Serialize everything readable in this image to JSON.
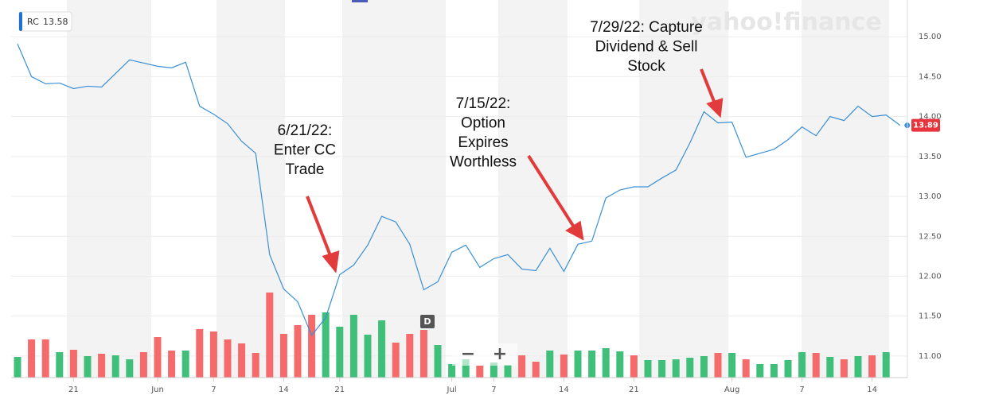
{
  "chart_data": {
    "type": "line",
    "legend_symbol": "RC",
    "legend_value": 13.58,
    "watermark": "yahoo!finance",
    "marker_letter": "D",
    "zoom_out": "−",
    "zoom_in": "+",
    "categories": [
      null,
      null,
      null,
      null,
      "21",
      null,
      null,
      null,
      null,
      null,
      "Jun",
      null,
      null,
      null,
      "7",
      null,
      null,
      null,
      null,
      "14",
      null,
      null,
      null,
      "21",
      null,
      null,
      null,
      null,
      null,
      null,
      null,
      "Jul",
      null,
      null,
      "7",
      null,
      null,
      null,
      null,
      "14",
      null,
      null,
      null,
      null,
      "21",
      null,
      null,
      null,
      null,
      null,
      null,
      "Aug",
      null,
      null,
      null,
      null,
      "7",
      null,
      null,
      null,
      null,
      "14",
      null,
      null
    ],
    "series": [
      {
        "name": "RC",
        "color": "#3a8fd8",
        "values": [
          14.91,
          14.5,
          14.41,
          14.42,
          14.35,
          14.38,
          14.37,
          14.54,
          14.71,
          14.67,
          14.63,
          14.61,
          14.68,
          14.13,
          14.03,
          13.91,
          13.69,
          13.54,
          12.27,
          11.84,
          11.68,
          11.26,
          11.48,
          12.02,
          12.14,
          12.39,
          12.75,
          12.68,
          12.4,
          11.83,
          11.93,
          12.3,
          12.39,
          12.11,
          12.22,
          12.27,
          12.09,
          12.07,
          12.35,
          12.06,
          12.4,
          12.44,
          12.98,
          13.08,
          13.12,
          13.12,
          13.23,
          13.33,
          13.67,
          14.06,
          13.92,
          13.93,
          13.49,
          13.54,
          13.59,
          13.71,
          13.87,
          13.76,
          14.0,
          13.95,
          14.13,
          14.0,
          14.02,
          13.89
        ]
      }
    ],
    "volume": {
      "up_color": "#3fbf7a",
      "down_color": "#f56a6a",
      "values": [
        26,
        48,
        48,
        32,
        35,
        27,
        30,
        28,
        23,
        32,
        51,
        34,
        34,
        61,
        58,
        48,
        43,
        31,
        107,
        55,
        66,
        79,
        82,
        64,
        79,
        54,
        72,
        44,
        55,
        60,
        41,
        17,
        23,
        15,
        19,
        16,
        28,
        20,
        34,
        29,
        34,
        34,
        37,
        33,
        28,
        22,
        22,
        23,
        25,
        27,
        31,
        31,
        23,
        17,
        17,
        22,
        32,
        31,
        26,
        23,
        27,
        28,
        32,
        null
      ],
      "up": [
        true,
        false,
        false,
        true,
        false,
        true,
        false,
        true,
        true,
        false,
        false,
        false,
        true,
        false,
        false,
        false,
        false,
        false,
        false,
        false,
        false,
        false,
        true,
        true,
        true,
        true,
        true,
        false,
        false,
        false,
        true,
        true,
        true,
        false,
        true,
        true,
        false,
        false,
        true,
        false,
        true,
        true,
        true,
        true,
        false,
        true,
        true,
        true,
        true,
        true,
        false,
        true,
        false,
        true,
        true,
        true,
        true,
        false,
        true,
        false,
        true,
        false,
        true,
        null
      ]
    },
    "ylim": [
      10.73,
      15.46
    ],
    "yticks": [
      {
        "value": 11,
        "label": "11.00"
      },
      {
        "value": 11.5,
        "label": "11.50"
      },
      {
        "value": 12,
        "label": "12.00"
      },
      {
        "value": 12.5,
        "label": "12.50"
      },
      {
        "value": 13,
        "label": "13.00"
      },
      {
        "value": 13.5,
        "label": "13.50"
      },
      {
        "value": 14,
        "label": "14.00"
      },
      {
        "value": 14.5,
        "label": "14.50"
      },
      {
        "value": 15,
        "label": "15.00"
      }
    ],
    "grid": true,
    "last_price_color": "#e8343c",
    "annotations": [
      {
        "lines": [
          "6/21/22:",
          "Enter CC",
          "Trade"
        ]
      },
      {
        "lines": [
          "7/15/22:",
          "Option",
          "Expires",
          "Worthless"
        ]
      },
      {
        "lines": [
          "7/29/22: Capture",
          "Dividend & Sell",
          "Stock"
        ]
      }
    ]
  }
}
